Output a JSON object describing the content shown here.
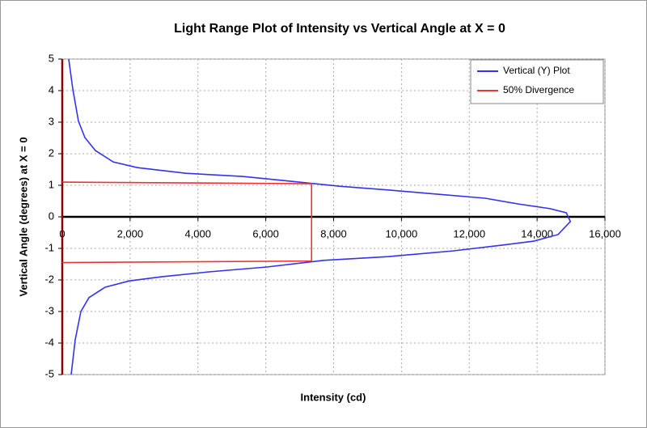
{
  "chart_data": {
    "type": "line",
    "title": "Light Range Plot of Intensity vs Vertical Angle at X = 0",
    "x_label": "Intensity (cd)",
    "y_label": "Vertical Angle (degrees) at X = 0",
    "xlim": [
      0,
      16000
    ],
    "xticks": [
      0,
      {
        "value": 2000,
        "label": "2,000"
      },
      {
        "value": 4000,
        "label": "4,000"
      },
      {
        "value": 6000,
        "label": "6,000"
      },
      {
        "value": 8000,
        "label": "8,000"
      },
      {
        "value": 10000,
        "label": "10,000"
      },
      {
        "value": 12000,
        "label": "12,000"
      },
      {
        "value": 14000,
        "label": "14,000"
      },
      {
        "value": 16000,
        "label": "16,000"
      }
    ],
    "ylim": [
      -5,
      5
    ],
    "yticks": [
      -5,
      -4,
      -3,
      -2,
      -1,
      0,
      1,
      2,
      3,
      4,
      5
    ],
    "grid": true,
    "legend": "top-right",
    "series": [
      {
        "name": "Vertical (Y) Plot",
        "color": "#3333ee",
        "x": [
          190,
          310,
          477,
          668,
          978,
          1502,
          2217,
          3648,
          5317,
          6986,
          8178,
          9608,
          11040,
          12470,
          13430,
          14380,
          14860,
          14980,
          14620,
          13900,
          12950,
          11520,
          9608,
          7700,
          6032,
          4363,
          2932,
          1978,
          1264,
          787,
          548,
          381,
          262
        ],
        "values": [
          5,
          4.05,
          3.03,
          2.51,
          2.1,
          1.74,
          1.56,
          1.38,
          1.28,
          1.1,
          0.97,
          0.85,
          0.72,
          0.59,
          0.41,
          0.26,
          0.13,
          -0.15,
          -0.56,
          -0.77,
          -0.9,
          -1.08,
          -1.26,
          -1.38,
          -1.59,
          -1.74,
          -1.9,
          -2.03,
          -2.23,
          -2.56,
          -3.0,
          -3.9,
          -5
        ]
      },
      {
        "name": "50% Divergence",
        "color": "#ee3333",
        "x": [
          0,
          7350,
          7350,
          0
        ],
        "values": [
          1.1,
          1.05,
          -1.4,
          -1.45
        ]
      }
    ]
  }
}
